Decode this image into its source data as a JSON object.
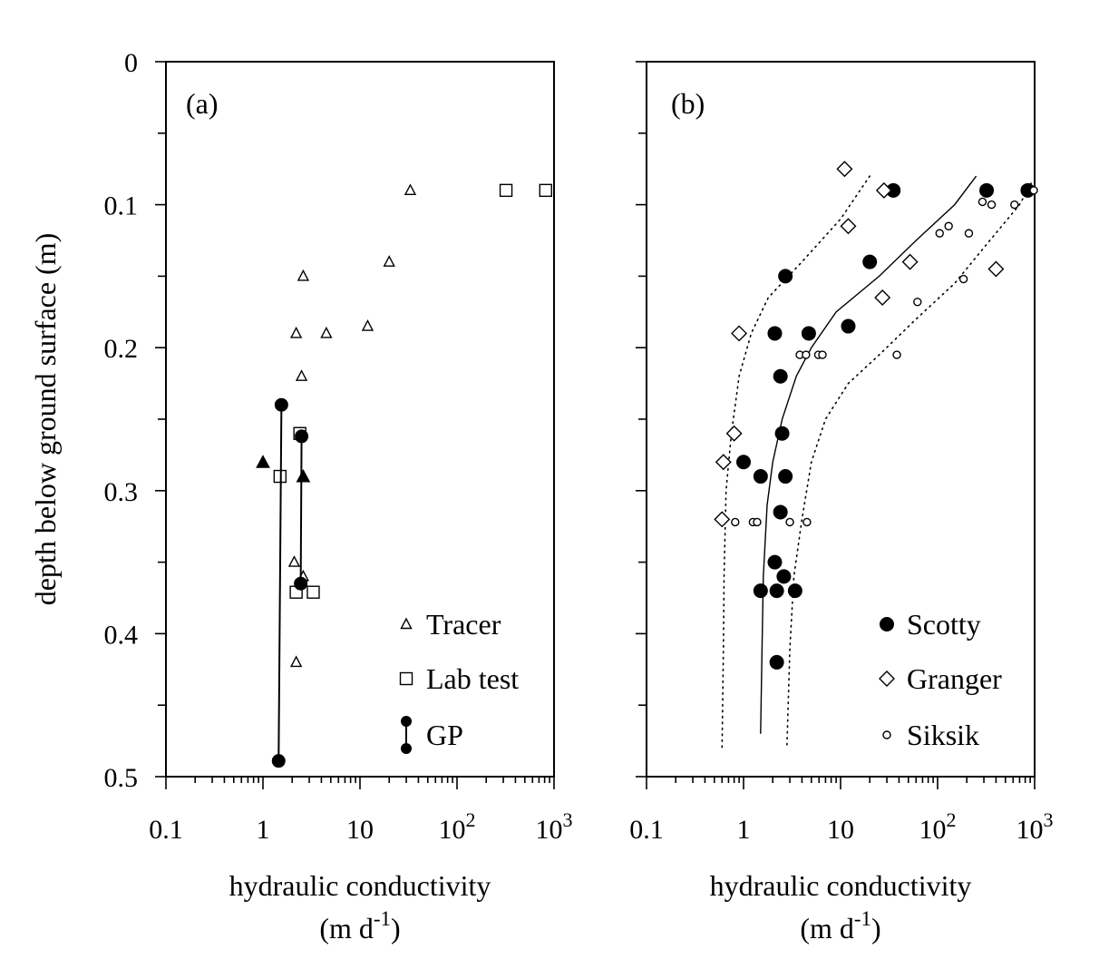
{
  "shared": {
    "ylabel": "depth below ground surface (m)",
    "y_ticks": [
      "0",
      "0.1",
      "0.2",
      "0.3",
      "0.4",
      "0.5"
    ],
    "x_tick_labels": [
      {
        "base": "0.1",
        "exp": ""
      },
      {
        "base": "1",
        "exp": ""
      },
      {
        "base": "10",
        "exp": ""
      },
      {
        "base": "10",
        "exp": "2"
      },
      {
        "base": "10",
        "exp": "3"
      }
    ]
  },
  "chart_data": [
    {
      "type": "scatter",
      "panel_label": "(a)",
      "xlabel_line1": "hydraulic conductivity",
      "xlabel_line2": "(m d",
      "xlabel_line2_exp": "-1",
      "xlabel_line2_end": ")",
      "x_scale": "log",
      "xlim": [
        0.1,
        1000
      ],
      "ylim": [
        0,
        0.5
      ],
      "y_inverted": true,
      "legend_position": "bottom-right",
      "legend": [
        "Tracer",
        "Lab test",
        "GP"
      ],
      "series": [
        {
          "name": "Tracer",
          "marker": "open-triangle",
          "points": [
            {
              "x": 33,
              "y": 0.09
            },
            {
              "x": 20,
              "y": 0.14
            },
            {
              "x": 2.6,
              "y": 0.15
            },
            {
              "x": 2.2,
              "y": 0.19
            },
            {
              "x": 4.5,
              "y": 0.19
            },
            {
              "x": 12,
              "y": 0.185
            },
            {
              "x": 2.5,
              "y": 0.22
            },
            {
              "x": 2.4,
              "y": 0.26
            },
            {
              "x": 2.1,
              "y": 0.35
            },
            {
              "x": 2.6,
              "y": 0.36
            },
            {
              "x": 2.2,
              "y": 0.42
            }
          ]
        },
        {
          "name": "Tracer (filled)",
          "marker": "filled-triangle",
          "points": [
            {
              "x": 1.0,
              "y": 0.28
            },
            {
              "x": 2.6,
              "y": 0.29
            }
          ]
        },
        {
          "name": "Lab test",
          "marker": "open-square",
          "points": [
            {
              "x": 320,
              "y": 0.09
            },
            {
              "x": 820,
              "y": 0.09
            },
            {
              "x": 2.4,
              "y": 0.26
            },
            {
              "x": 1.5,
              "y": 0.29
            },
            {
              "x": 2.2,
              "y": 0.371
            },
            {
              "x": 3.3,
              "y": 0.371
            }
          ]
        },
        {
          "name": "GP",
          "marker": "filled-circle-segment",
          "segments": [
            {
              "x1": 1.55,
              "y1": 0.24,
              "x2": 1.45,
              "y2": 0.489
            },
            {
              "x1": 2.5,
              "y1": 0.262,
              "x2": 2.45,
              "y2": 0.365
            }
          ]
        }
      ]
    },
    {
      "type": "scatter",
      "panel_label": "(b)",
      "xlabel_line1": "hydraulic conductivity",
      "xlabel_line2": "(m d",
      "xlabel_line2_exp": "-1",
      "xlabel_line2_end": ")",
      "x_scale": "log",
      "xlim": [
        0.1,
        1000
      ],
      "ylim": [
        0,
        0.5
      ],
      "y_inverted": true,
      "legend_position": "bottom-right",
      "legend": [
        "Scotty",
        "Granger",
        "Siksik"
      ],
      "series": [
        {
          "name": "Scotty",
          "marker": "filled-circle",
          "points": [
            {
              "x": 35,
              "y": 0.09
            },
            {
              "x": 320,
              "y": 0.09
            },
            {
              "x": 850,
              "y": 0.09
            },
            {
              "x": 20,
              "y": 0.14
            },
            {
              "x": 2.7,
              "y": 0.15
            },
            {
              "x": 2.1,
              "y": 0.19
            },
            {
              "x": 4.7,
              "y": 0.19
            },
            {
              "x": 12,
              "y": 0.185
            },
            {
              "x": 2.4,
              "y": 0.22
            },
            {
              "x": 2.5,
              "y": 0.26
            },
            {
              "x": 1.0,
              "y": 0.28
            },
            {
              "x": 1.5,
              "y": 0.29
            },
            {
              "x": 2.7,
              "y": 0.29
            },
            {
              "x": 2.4,
              "y": 0.315
            },
            {
              "x": 2.1,
              "y": 0.35
            },
            {
              "x": 2.6,
              "y": 0.36
            },
            {
              "x": 1.5,
              "y": 0.37
            },
            {
              "x": 2.2,
              "y": 0.37
            },
            {
              "x": 3.4,
              "y": 0.37
            },
            {
              "x": 2.2,
              "y": 0.42
            }
          ]
        },
        {
          "name": "Granger",
          "marker": "open-diamond",
          "points": [
            {
              "x": 11,
              "y": 0.075
            },
            {
              "x": 28,
              "y": 0.09
            },
            {
              "x": 12,
              "y": 0.115
            },
            {
              "x": 52,
              "y": 0.14
            },
            {
              "x": 400,
              "y": 0.145
            },
            {
              "x": 27,
              "y": 0.165
            },
            {
              "x": 0.9,
              "y": 0.19
            },
            {
              "x": 0.8,
              "y": 0.26
            },
            {
              "x": 0.62,
              "y": 0.28
            },
            {
              "x": 0.6,
              "y": 0.32
            }
          ]
        },
        {
          "name": "Siksik",
          "marker": "open-small-circle",
          "points": [
            {
              "x": 980,
              "y": 0.09
            },
            {
              "x": 290,
              "y": 0.098
            },
            {
              "x": 360,
              "y": 0.1
            },
            {
              "x": 620,
              "y": 0.1
            },
            {
              "x": 105,
              "y": 0.12
            },
            {
              "x": 130,
              "y": 0.115
            },
            {
              "x": 210,
              "y": 0.12
            },
            {
              "x": 185,
              "y": 0.152
            },
            {
              "x": 62,
              "y": 0.168
            },
            {
              "x": 3.8,
              "y": 0.205
            },
            {
              "x": 4.4,
              "y": 0.205
            },
            {
              "x": 5.9,
              "y": 0.205
            },
            {
              "x": 6.5,
              "y": 0.205
            },
            {
              "x": 38,
              "y": 0.205
            },
            {
              "x": 0.82,
              "y": 0.322
            },
            {
              "x": 1.25,
              "y": 0.322
            },
            {
              "x": 1.38,
              "y": 0.322
            },
            {
              "x": 3.0,
              "y": 0.322
            },
            {
              "x": 4.5,
              "y": 0.322
            }
          ]
        }
      ],
      "curves": [
        {
          "style": "solid",
          "points": [
            {
              "x": 250,
              "y": 0.08
            },
            {
              "x": 150,
              "y": 0.1
            },
            {
              "x": 60,
              "y": 0.125
            },
            {
              "x": 25,
              "y": 0.15
            },
            {
              "x": 9,
              "y": 0.175
            },
            {
              "x": 5,
              "y": 0.2
            },
            {
              "x": 3.5,
              "y": 0.22
            },
            {
              "x": 2.5,
              "y": 0.25
            },
            {
              "x": 2.0,
              "y": 0.28
            },
            {
              "x": 1.75,
              "y": 0.31
            },
            {
              "x": 1.6,
              "y": 0.36
            },
            {
              "x": 1.55,
              "y": 0.41
            },
            {
              "x": 1.5,
              "y": 0.47
            }
          ]
        },
        {
          "style": "dotted",
          "points": [
            {
              "x": 20,
              "y": 0.08
            },
            {
              "x": 10,
              "y": 0.11
            },
            {
              "x": 4,
              "y": 0.14
            },
            {
              "x": 1.8,
              "y": 0.165
            },
            {
              "x": 1.2,
              "y": 0.19
            },
            {
              "x": 0.9,
              "y": 0.22
            },
            {
              "x": 0.75,
              "y": 0.26
            },
            {
              "x": 0.66,
              "y": 0.3
            },
            {
              "x": 0.63,
              "y": 0.36
            },
            {
              "x": 0.62,
              "y": 0.41
            },
            {
              "x": 0.6,
              "y": 0.48
            }
          ]
        },
        {
          "style": "dotted",
          "points": [
            {
              "x": 920,
              "y": 0.085
            },
            {
              "x": 700,
              "y": 0.1
            },
            {
              "x": 300,
              "y": 0.13
            },
            {
              "x": 150,
              "y": 0.155
            },
            {
              "x": 60,
              "y": 0.18
            },
            {
              "x": 25,
              "y": 0.205
            },
            {
              "x": 12,
              "y": 0.225
            },
            {
              "x": 7,
              "y": 0.25
            },
            {
              "x": 5,
              "y": 0.28
            },
            {
              "x": 4,
              "y": 0.32
            },
            {
              "x": 3.3,
              "y": 0.36
            },
            {
              "x": 3.0,
              "y": 0.41
            },
            {
              "x": 2.8,
              "y": 0.48
            }
          ]
        }
      ]
    }
  ]
}
